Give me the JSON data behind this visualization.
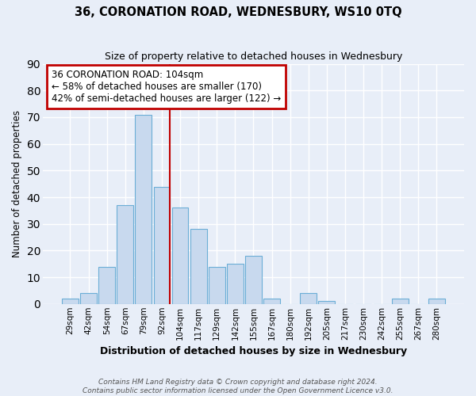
{
  "title": "36, CORONATION ROAD, WEDNESBURY, WS10 0TQ",
  "subtitle": "Size of property relative to detached houses in Wednesbury",
  "xlabel": "Distribution of detached houses by size in Wednesbury",
  "ylabel": "Number of detached properties",
  "footer_line1": "Contains HM Land Registry data © Crown copyright and database right 2024.",
  "footer_line2": "Contains public sector information licensed under the Open Government Licence v3.0.",
  "bar_labels": [
    "29sqm",
    "42sqm",
    "54sqm",
    "67sqm",
    "79sqm",
    "92sqm",
    "104sqm",
    "117sqm",
    "129sqm",
    "142sqm",
    "155sqm",
    "167sqm",
    "180sqm",
    "192sqm",
    "205sqm",
    "217sqm",
    "230sqm",
    "242sqm",
    "255sqm",
    "267sqm",
    "280sqm"
  ],
  "bar_values": [
    2,
    4,
    14,
    37,
    71,
    44,
    36,
    28,
    14,
    15,
    18,
    2,
    0,
    4,
    1,
    0,
    0,
    0,
    2,
    0,
    2
  ],
  "bar_color": "#c8d9ee",
  "bar_edgecolor": "#6baed6",
  "ylim": [
    0,
    90
  ],
  "yticks": [
    0,
    10,
    20,
    30,
    40,
    50,
    60,
    70,
    80,
    90
  ],
  "vline_color": "#c00000",
  "annotation_title": "36 CORONATION ROAD: 104sqm",
  "annotation_line1": "← 58% of detached houses are smaller (170)",
  "annotation_line2": "42% of semi-detached houses are larger (122) →",
  "annotation_box_edgecolor": "#c00000",
  "annotation_box_facecolor": "#ffffff",
  "bg_color": "#e8eef8",
  "grid_color": "#ffffff"
}
